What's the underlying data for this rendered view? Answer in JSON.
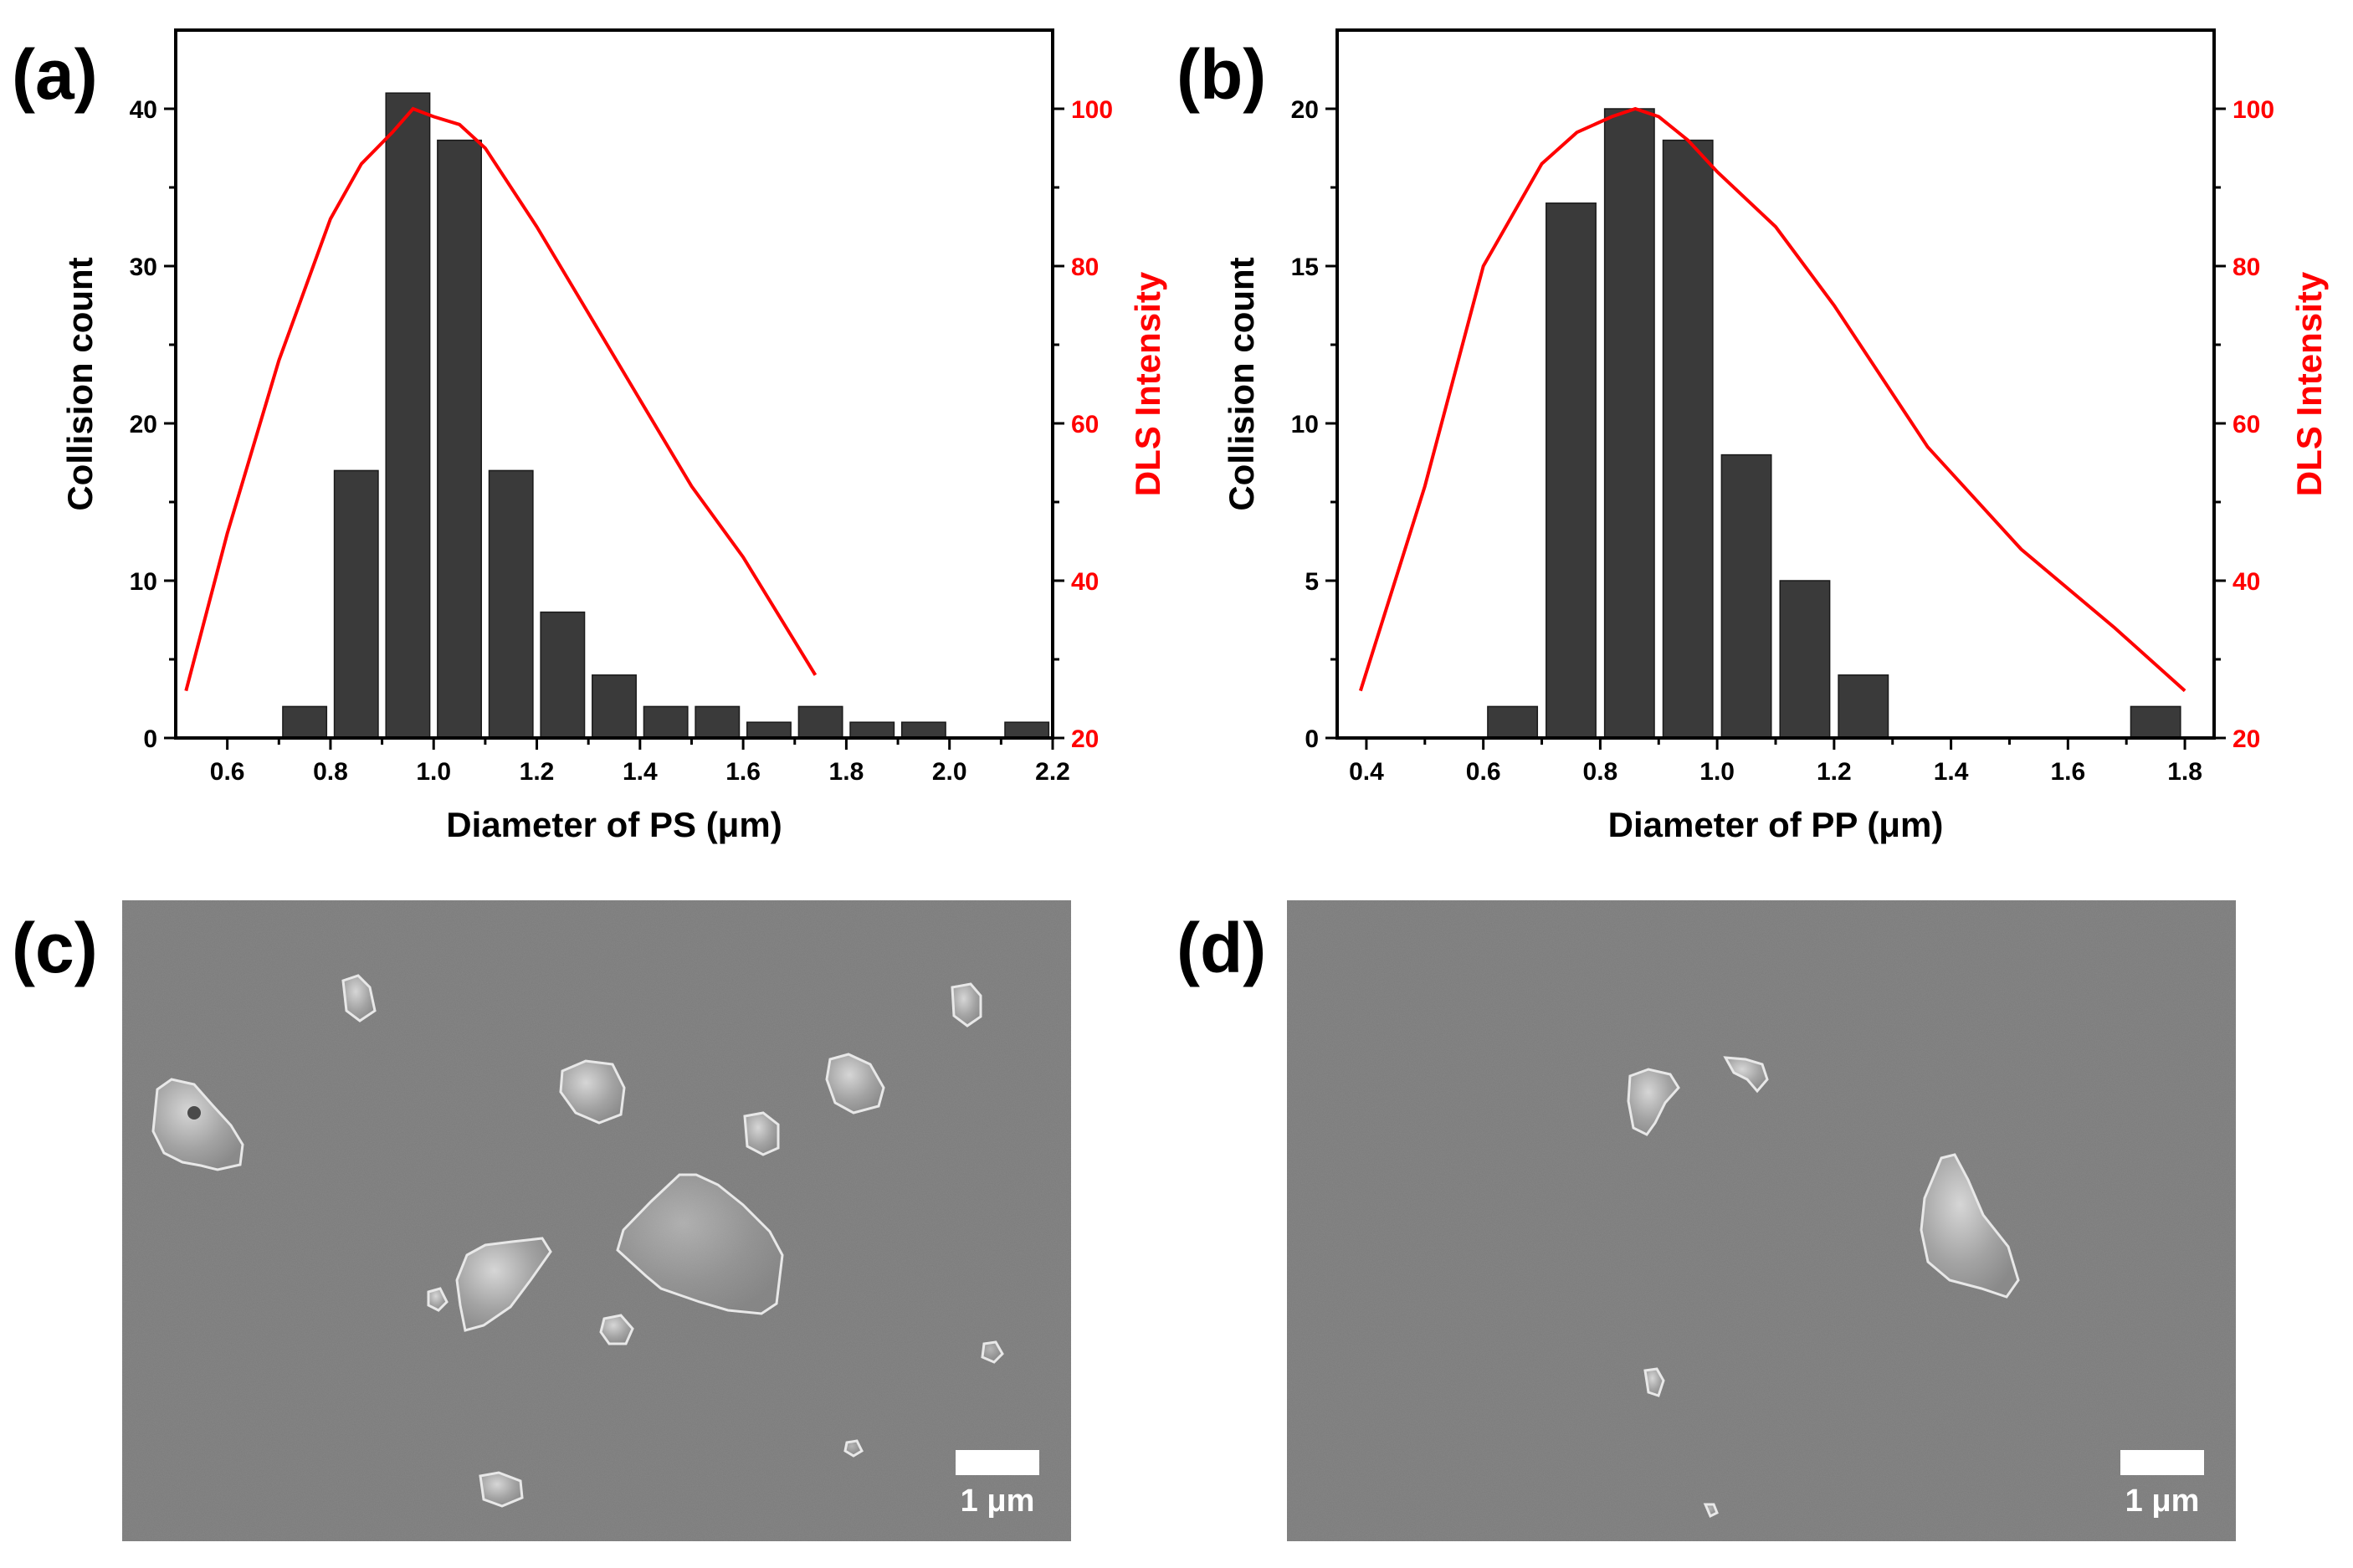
{
  "panel_labels": {
    "a": "(a)",
    "b": "(b)",
    "c": "(c)",
    "d": "(d)"
  },
  "colors": {
    "bar": "#3a3a3a",
    "line": "#ff0000",
    "sem_bg": "#7b7b7b",
    "scale_bar": "#ffffff"
  },
  "chart_data": [
    {
      "type": "bar",
      "title": "",
      "xlabel": "Diameter of PS (μm)",
      "ylabel": "Collision count",
      "y2label": "DLS Intensity",
      "xlim": [
        0.5,
        2.2
      ],
      "ylim": [
        0,
        45
      ],
      "y2lim": [
        20,
        110
      ],
      "xticks": [
        0.6,
        0.8,
        1.0,
        1.2,
        1.4,
        1.6,
        1.8,
        2.0,
        2.2
      ],
      "xtick_labels": [
        "0.6",
        "0.8",
        "1.0",
        "1.2",
        "1.4",
        "1.6",
        "1.8",
        "2.0",
        "2.2"
      ],
      "yticks": [
        0,
        10,
        20,
        30,
        40
      ],
      "ytick_labels": [
        "0",
        "10",
        "20",
        "30",
        "40"
      ],
      "y2ticks": [
        20,
        40,
        60,
        80,
        100
      ],
      "y2tick_labels": [
        "20",
        "40",
        "60",
        "80",
        "100"
      ],
      "bar_width": 0.085,
      "bars": {
        "x": [
          0.75,
          0.85,
          0.95,
          1.05,
          1.15,
          1.25,
          1.35,
          1.45,
          1.55,
          1.65,
          1.75,
          1.85,
          1.95,
          2.15
        ],
        "values": [
          2,
          17,
          41,
          38,
          17,
          8,
          4,
          2,
          2,
          1,
          2,
          1,
          1,
          1
        ]
      },
      "line": {
        "name": "DLS Intensity",
        "x": [
          0.52,
          0.6,
          0.7,
          0.8,
          0.86,
          0.92,
          0.96,
          1.0,
          1.05,
          1.1,
          1.2,
          1.3,
          1.4,
          1.5,
          1.6,
          1.74
        ],
        "values": [
          26,
          46,
          68,
          86,
          93,
          97,
          100,
          99,
          98,
          95,
          85,
          74,
          63,
          52,
          43,
          28
        ]
      }
    },
    {
      "type": "bar",
      "title": "",
      "xlabel": "Diameter of PP (μm)",
      "ylabel": "Collision count",
      "y2label": "DLS Intensity",
      "xlim": [
        0.35,
        1.85
      ],
      "ylim": [
        0,
        22.5
      ],
      "y2lim": [
        20,
        110
      ],
      "xticks": [
        0.4,
        0.6,
        0.8,
        1.0,
        1.2,
        1.4,
        1.6,
        1.8
      ],
      "xtick_labels": [
        "0.4",
        "0.6",
        "0.8",
        "1.0",
        "1.2",
        "1.4",
        "1.6",
        "1.8"
      ],
      "yticks": [
        0,
        5,
        10,
        15,
        20
      ],
      "ytick_labels": [
        "0",
        "5",
        "10",
        "15",
        "20"
      ],
      "y2ticks": [
        20,
        40,
        60,
        80,
        100
      ],
      "y2tick_labels": [
        "20",
        "40",
        "60",
        "80",
        "100"
      ],
      "bar_width": 0.085,
      "bars": {
        "x": [
          0.65,
          0.75,
          0.85,
          0.95,
          1.05,
          1.15,
          1.25,
          1.75
        ],
        "values": [
          1,
          17,
          20,
          19,
          9,
          5,
          2,
          1
        ]
      },
      "line": {
        "name": "DLS Intensity",
        "x": [
          0.39,
          0.5,
          0.6,
          0.7,
          0.76,
          0.82,
          0.86,
          0.9,
          0.95,
          1.0,
          1.1,
          1.2,
          1.36,
          1.52,
          1.68,
          1.8
        ],
        "values": [
          26,
          52,
          80,
          93,
          97,
          99,
          100,
          99,
          96,
          92,
          85,
          75,
          57,
          44,
          34,
          26
        ]
      }
    }
  ],
  "sem_images": [
    {
      "label": "(c)",
      "scale_text": "1 μm"
    },
    {
      "label": "(d)",
      "scale_text": "1 μm"
    }
  ]
}
